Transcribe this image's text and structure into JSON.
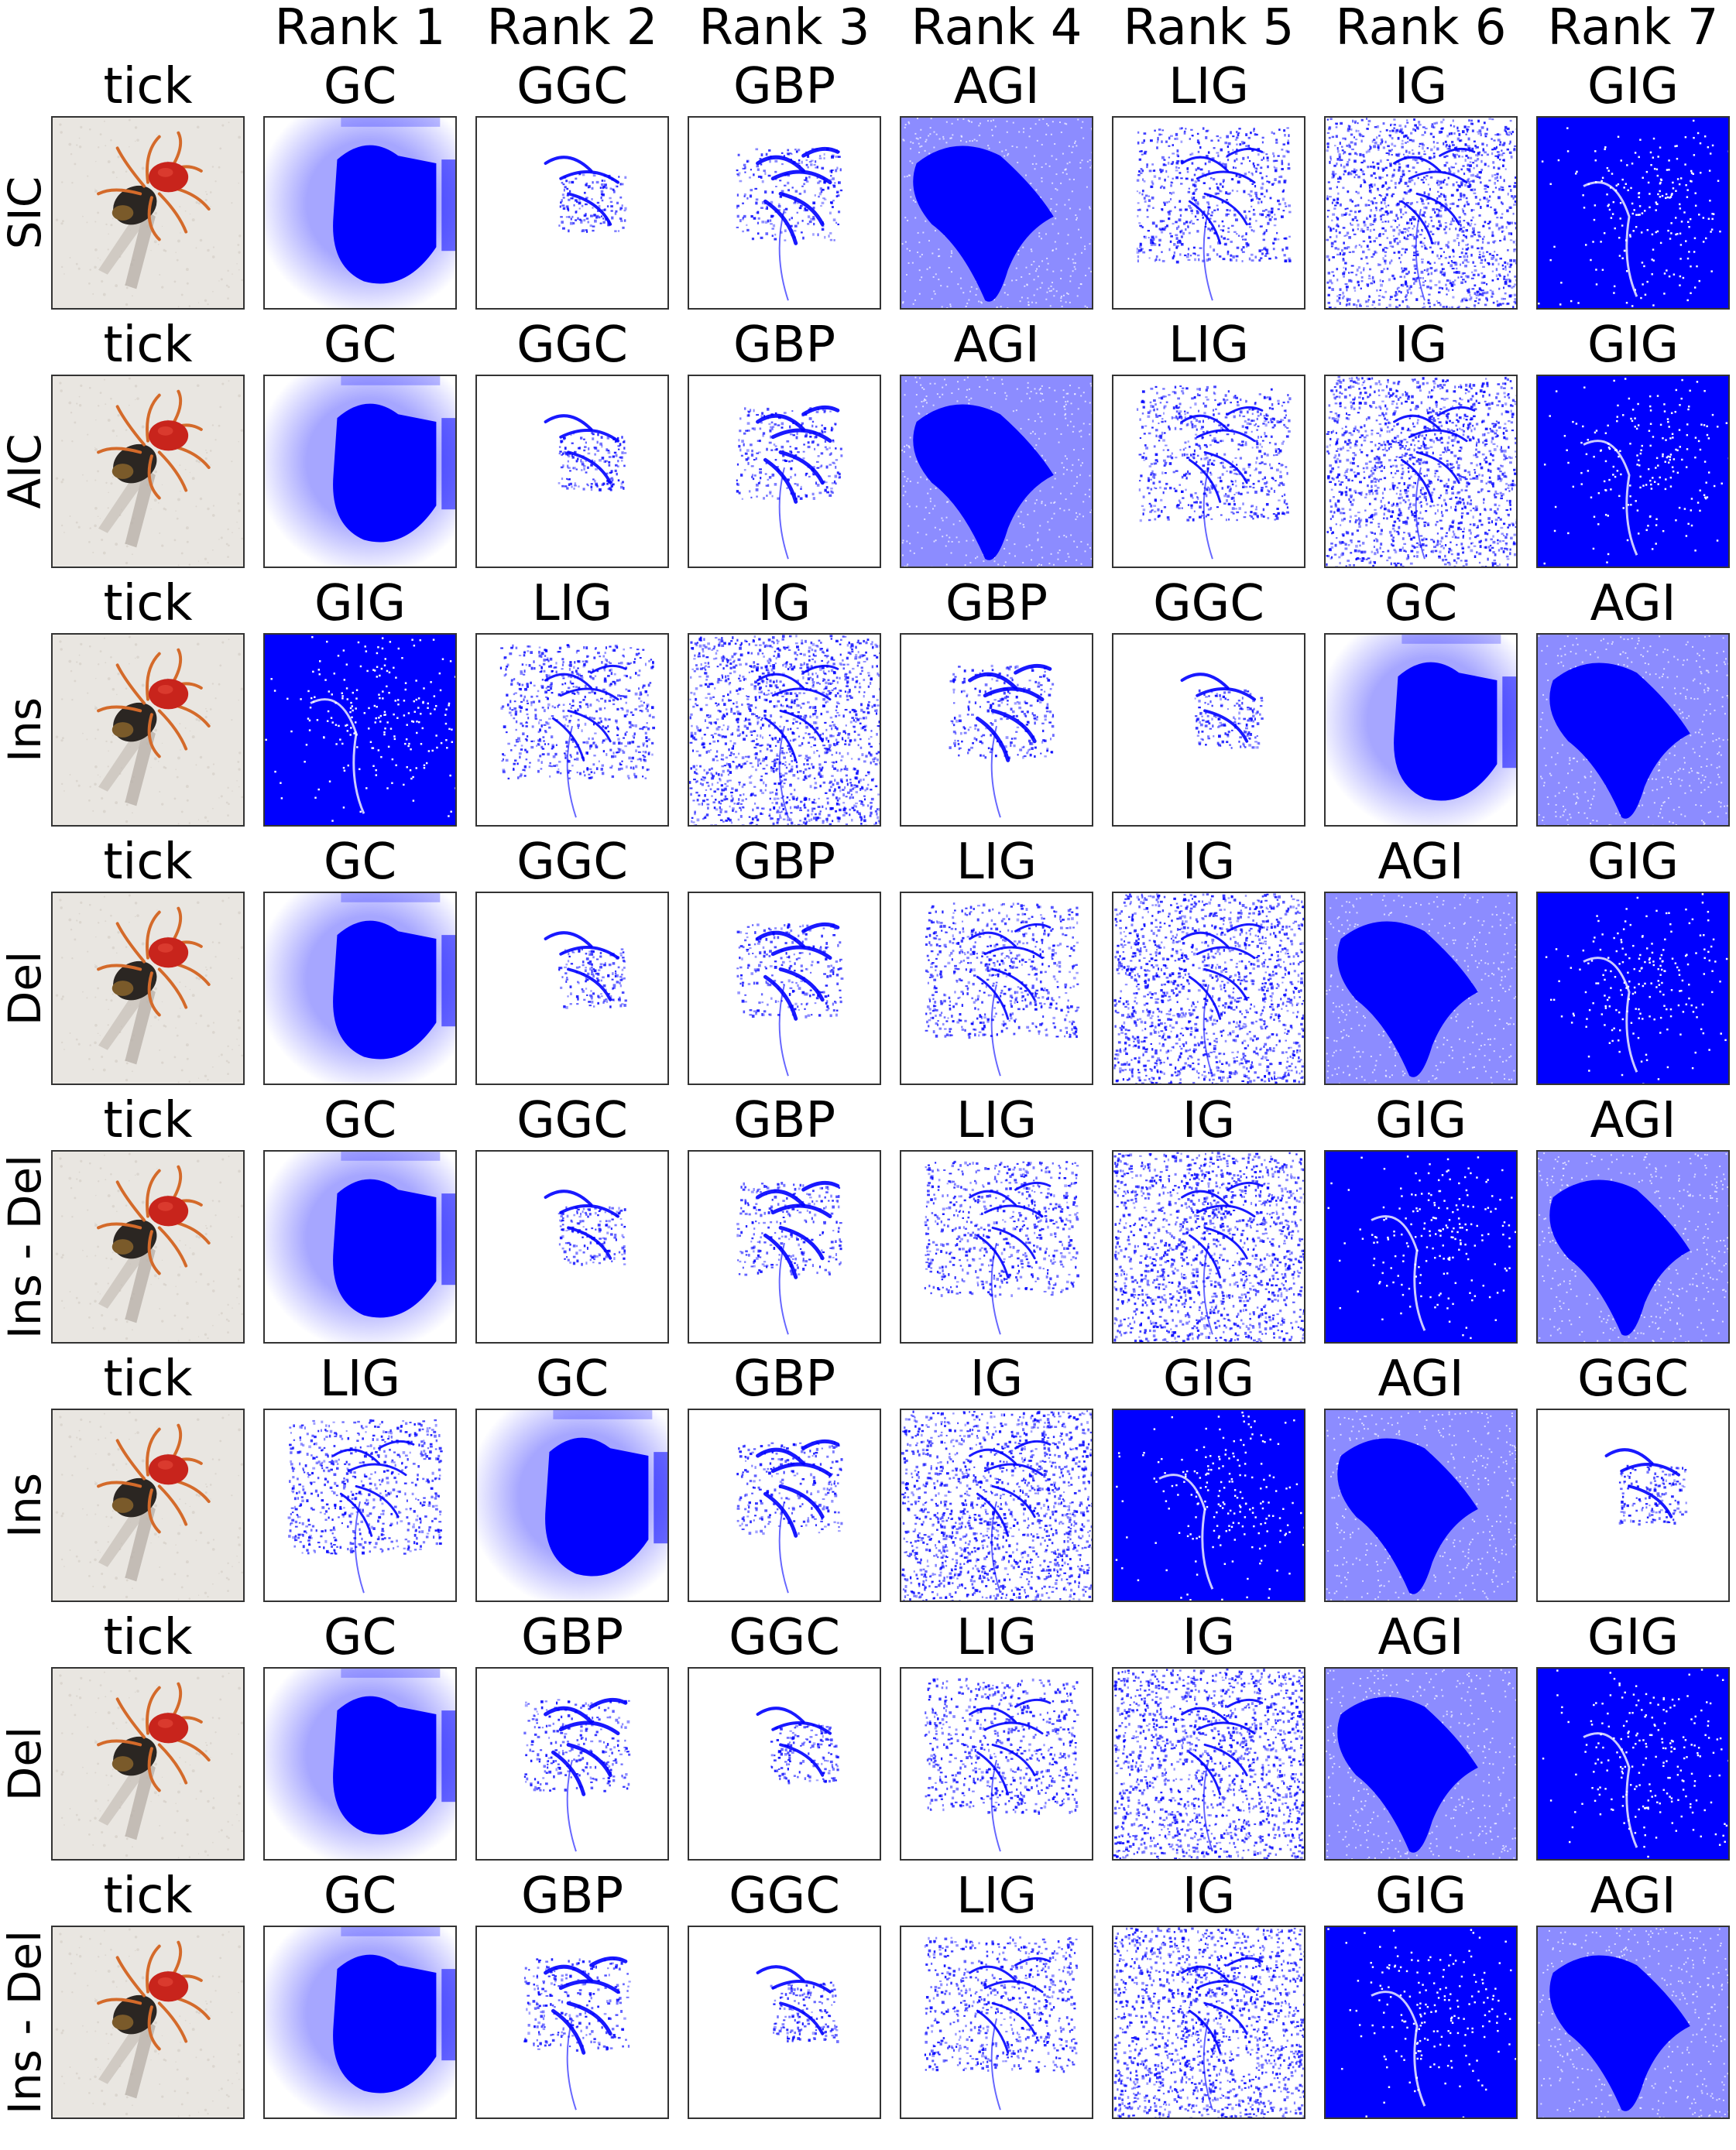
{
  "rank_headers": [
    "Rank 1",
    "Rank 2",
    "Rank 3",
    "Rank 4",
    "Rank 5",
    "Rank 6",
    "Rank 7"
  ],
  "input_label": "tick",
  "colors": {
    "attribution": "#0000ff",
    "background": "#ffffff",
    "border": "#333333"
  },
  "rows": [
    {
      "metric": "SIC",
      "methods": [
        "GC",
        "GGC",
        "GBP",
        "AGI",
        "LIG",
        "IG",
        "GIG"
      ]
    },
    {
      "metric": "AIC",
      "methods": [
        "GC",
        "GGC",
        "GBP",
        "AGI",
        "LIG",
        "IG",
        "GIG"
      ]
    },
    {
      "metric": "Ins",
      "methods": [
        "GIG",
        "LIG",
        "IG",
        "GBP",
        "GGC",
        "GC",
        "AGI"
      ]
    },
    {
      "metric": "Del",
      "methods": [
        "GC",
        "GGC",
        "GBP",
        "LIG",
        "IG",
        "AGI",
        "GIG"
      ]
    },
    {
      "metric": "Ins - Del",
      "methods": [
        "GC",
        "GGC",
        "GBP",
        "LIG",
        "IG",
        "GIG",
        "AGI"
      ]
    },
    {
      "metric": "Ins",
      "methods": [
        "LIG",
        "GC",
        "GBP",
        "IG",
        "GIG",
        "AGI",
        "GGC"
      ]
    },
    {
      "metric": "Del",
      "methods": [
        "GC",
        "GBP",
        "GGC",
        "LIG",
        "IG",
        "AGI",
        "GIG"
      ]
    },
    {
      "metric": "Ins - Del",
      "methods": [
        "GC",
        "GBP",
        "GGC",
        "LIG",
        "IG",
        "GIG",
        "AGI"
      ]
    }
  ]
}
